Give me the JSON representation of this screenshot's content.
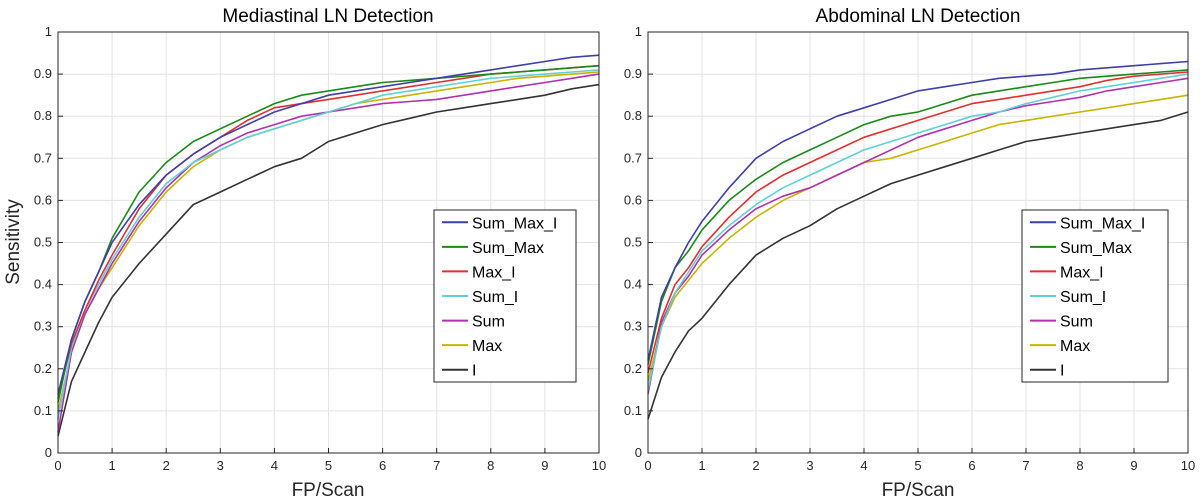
{
  "chart_data": [
    {
      "type": "line",
      "title": "Mediastinal LN Detection",
      "xlabel": "FP/Scan",
      "ylabel": "Sensitivity",
      "xlim": [
        0,
        10
      ],
      "ylim": [
        0,
        1
      ],
      "xticks": [
        "0",
        "1",
        "2",
        "3",
        "4",
        "5",
        "6",
        "7",
        "8",
        "9",
        "10"
      ],
      "yticks": [
        "0",
        "0.1",
        "0.2",
        "0.3",
        "0.4",
        "0.5",
        "0.6",
        "0.7",
        "0.8",
        "0.9",
        "1"
      ],
      "grid": true,
      "legend_position": "center-right",
      "x": [
        0,
        0.25,
        0.5,
        0.75,
        1,
        1.5,
        2,
        2.5,
        3,
        3.5,
        4,
        4.5,
        5,
        5.5,
        6,
        6.5,
        7,
        7.5,
        8,
        8.5,
        9,
        9.5,
        10
      ],
      "series": [
        {
          "name": "Sum_Max_I",
          "color": "#3f3fa8",
          "values": [
            0.14,
            0.27,
            0.36,
            0.43,
            0.5,
            0.59,
            0.66,
            0.71,
            0.75,
            0.78,
            0.81,
            0.83,
            0.85,
            0.86,
            0.87,
            0.88,
            0.89,
            0.9,
            0.91,
            0.92,
            0.93,
            0.94,
            0.945
          ]
        },
        {
          "name": "Sum_Max",
          "color": "#1a8a1a",
          "values": [
            0.12,
            0.27,
            0.36,
            0.43,
            0.51,
            0.62,
            0.69,
            0.74,
            0.77,
            0.8,
            0.83,
            0.85,
            0.86,
            0.87,
            0.88,
            0.885,
            0.89,
            0.895,
            0.9,
            0.905,
            0.91,
            0.915,
            0.92
          ]
        },
        {
          "name": "Max_I",
          "color": "#e03030",
          "values": [
            0.13,
            0.26,
            0.34,
            0.41,
            0.47,
            0.58,
            0.66,
            0.71,
            0.75,
            0.79,
            0.82,
            0.83,
            0.84,
            0.85,
            0.86,
            0.87,
            0.88,
            0.89,
            0.9,
            0.905,
            0.91,
            0.915,
            0.92
          ]
        },
        {
          "name": "Sum_I",
          "color": "#60d0d8",
          "values": [
            0.08,
            0.25,
            0.34,
            0.4,
            0.46,
            0.56,
            0.64,
            0.69,
            0.72,
            0.75,
            0.77,
            0.79,
            0.81,
            0.83,
            0.85,
            0.86,
            0.87,
            0.88,
            0.89,
            0.895,
            0.9,
            0.905,
            0.91
          ]
        },
        {
          "name": "Sum",
          "color": "#b030b0",
          "values": [
            0.05,
            0.24,
            0.33,
            0.39,
            0.45,
            0.55,
            0.63,
            0.69,
            0.73,
            0.76,
            0.78,
            0.8,
            0.81,
            0.82,
            0.83,
            0.835,
            0.84,
            0.85,
            0.86,
            0.87,
            0.88,
            0.89,
            0.9
          ]
        },
        {
          "name": "Max",
          "color": "#c8b400",
          "values": [
            0.1,
            0.24,
            0.33,
            0.39,
            0.44,
            0.54,
            0.62,
            0.68,
            0.72,
            0.75,
            0.77,
            0.79,
            0.81,
            0.83,
            0.84,
            0.85,
            0.86,
            0.87,
            0.88,
            0.89,
            0.895,
            0.9,
            0.905
          ]
        },
        {
          "name": "I",
          "color": "#333333",
          "values": [
            0.04,
            0.17,
            0.24,
            0.31,
            0.37,
            0.45,
            0.52,
            0.59,
            0.62,
            0.65,
            0.68,
            0.7,
            0.74,
            0.76,
            0.78,
            0.795,
            0.81,
            0.82,
            0.83,
            0.84,
            0.85,
            0.865,
            0.875
          ]
        }
      ]
    },
    {
      "type": "line",
      "title": "Abdominal LN Detection",
      "xlabel": "FP/Scan",
      "ylabel": "",
      "xlim": [
        0,
        10
      ],
      "ylim": [
        0,
        1
      ],
      "xticks": [
        "0",
        "1",
        "2",
        "3",
        "4",
        "5",
        "6",
        "7",
        "8",
        "9",
        "10"
      ],
      "yticks": [
        "0",
        "0.1",
        "0.2",
        "0.3",
        "0.4",
        "0.5",
        "0.6",
        "0.7",
        "0.8",
        "0.9",
        "1"
      ],
      "grid": true,
      "legend_position": "center-right",
      "x": [
        0,
        0.25,
        0.5,
        0.75,
        1,
        1.5,
        2,
        2.5,
        3,
        3.5,
        4,
        4.5,
        5,
        5.5,
        6,
        6.5,
        7,
        7.5,
        8,
        8.5,
        9,
        9.5,
        10
      ],
      "series": [
        {
          "name": "Sum_Max_I",
          "color": "#3f3fa8",
          "values": [
            0.22,
            0.37,
            0.44,
            0.5,
            0.55,
            0.63,
            0.7,
            0.74,
            0.77,
            0.8,
            0.82,
            0.84,
            0.86,
            0.87,
            0.88,
            0.89,
            0.895,
            0.9,
            0.91,
            0.915,
            0.92,
            0.925,
            0.93
          ]
        },
        {
          "name": "Sum_Max",
          "color": "#1a8a1a",
          "values": [
            0.21,
            0.36,
            0.44,
            0.48,
            0.53,
            0.6,
            0.65,
            0.69,
            0.72,
            0.75,
            0.78,
            0.8,
            0.81,
            0.83,
            0.85,
            0.86,
            0.87,
            0.88,
            0.89,
            0.895,
            0.9,
            0.905,
            0.91
          ]
        },
        {
          "name": "Max_I",
          "color": "#e03030",
          "values": [
            0.19,
            0.32,
            0.4,
            0.44,
            0.49,
            0.56,
            0.62,
            0.66,
            0.69,
            0.72,
            0.75,
            0.77,
            0.79,
            0.81,
            0.83,
            0.84,
            0.85,
            0.86,
            0.87,
            0.885,
            0.895,
            0.9,
            0.905
          ]
        },
        {
          "name": "Sum_I",
          "color": "#60d0d8",
          "values": [
            0.15,
            0.3,
            0.38,
            0.43,
            0.48,
            0.54,
            0.59,
            0.63,
            0.66,
            0.69,
            0.72,
            0.74,
            0.76,
            0.78,
            0.8,
            0.81,
            0.83,
            0.845,
            0.86,
            0.87,
            0.88,
            0.89,
            0.9
          ]
        },
        {
          "name": "Sum",
          "color": "#b030b0",
          "values": [
            0.14,
            0.31,
            0.38,
            0.42,
            0.47,
            0.53,
            0.58,
            0.61,
            0.63,
            0.66,
            0.69,
            0.72,
            0.75,
            0.77,
            0.79,
            0.81,
            0.825,
            0.835,
            0.845,
            0.86,
            0.87,
            0.88,
            0.89
          ]
        },
        {
          "name": "Max",
          "color": "#c8b400",
          "values": [
            0.17,
            0.3,
            0.37,
            0.41,
            0.45,
            0.51,
            0.56,
            0.6,
            0.63,
            0.66,
            0.69,
            0.7,
            0.72,
            0.74,
            0.76,
            0.78,
            0.79,
            0.8,
            0.81,
            0.82,
            0.83,
            0.84,
            0.85
          ]
        },
        {
          "name": "I",
          "color": "#333333",
          "values": [
            0.08,
            0.18,
            0.24,
            0.29,
            0.32,
            0.4,
            0.47,
            0.51,
            0.54,
            0.58,
            0.61,
            0.64,
            0.66,
            0.68,
            0.7,
            0.72,
            0.74,
            0.75,
            0.76,
            0.77,
            0.78,
            0.79,
            0.81
          ]
        }
      ]
    }
  ]
}
